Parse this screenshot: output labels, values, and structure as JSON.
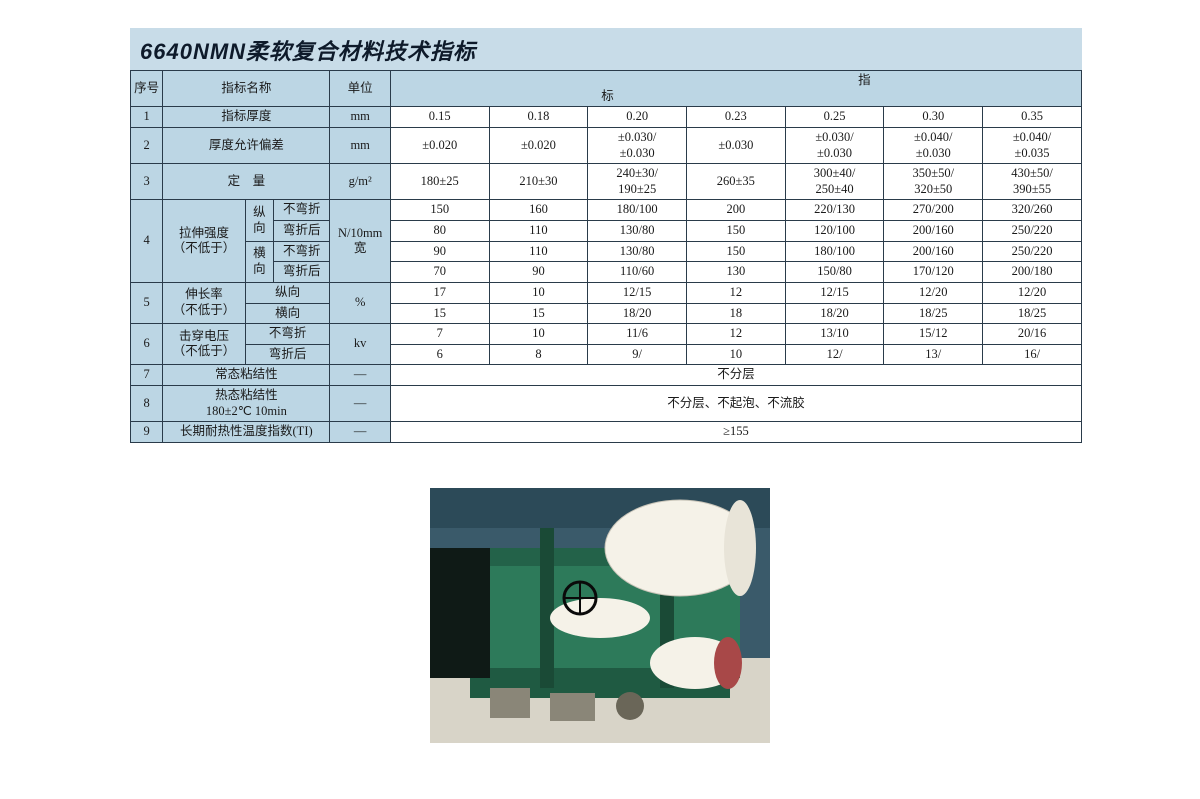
{
  "title": "6640NMN柔软复合材料技术指标",
  "colors": {
    "header_bg": "#bcd6e4",
    "title_bg": "#c8dce8",
    "border": "#2a3b4a",
    "text": "#1a1a1a",
    "page_bg": "#ffffff"
  },
  "header": {
    "seq": "序号",
    "name": "指标名称",
    "unit": "单位",
    "indexLeft": "指",
    "indexRight": "标"
  },
  "rows": {
    "r1": {
      "seq": "1",
      "name": "指标厚度",
      "unit": "mm",
      "v": [
        "0.15",
        "0.18",
        "0.20",
        "0.23",
        "0.25",
        "0.30",
        "0.35"
      ]
    },
    "r2": {
      "seq": "2",
      "name": "厚度允许偏差",
      "unit": "mm",
      "v": [
        "±0.020",
        "±0.020",
        "±0.030/\n±0.030",
        "±0.030",
        "±0.030/\n±0.030",
        "±0.040/\n±0.030",
        "±0.040/\n±0.035"
      ]
    },
    "r3": {
      "seq": "3",
      "name": "定　量",
      "unit": "g/m²",
      "v": [
        "180±25",
        "210±30",
        "240±30/\n190±25",
        "260±35",
        "300±40/\n250±40",
        "350±50/\n320±50",
        "430±50/\n390±55"
      ]
    },
    "r4": {
      "seq": "4",
      "name": "拉伸强度\n（不低于）",
      "unit": "N/10mm\n宽",
      "dir1": "纵\n向",
      "dir2": "横\n向",
      "sub1": "不弯折",
      "sub2": "弯折后",
      "sub3": "不弯折",
      "sub4": "弯折后",
      "line1": [
        "150",
        "160",
        "180/100",
        "200",
        "220/130",
        "270/200",
        "320/260"
      ],
      "line2": [
        "80",
        "110",
        "130/80",
        "150",
        "120/100",
        "200/160",
        "250/220"
      ],
      "line3": [
        "90",
        "110",
        "130/80",
        "150",
        "180/100",
        "200/160",
        "250/220"
      ],
      "line4": [
        "70",
        "90",
        "110/60",
        "130",
        "150/80",
        "170/120",
        "200/180"
      ]
    },
    "r5": {
      "seq": "5",
      "name": "伸长率\n（不低于）",
      "unit": "%",
      "sub1": "纵向",
      "sub2": "横向",
      "line1": [
        "17",
        "10",
        "12/15",
        "12",
        "12/15",
        "12/20",
        "12/20"
      ],
      "line2": [
        "15",
        "15",
        "18/20",
        "18",
        "18/20",
        "18/25",
        "18/25"
      ]
    },
    "r6": {
      "seq": "6",
      "name": "击穿电压\n（不低于）",
      "unit": "kv",
      "sub1": "不弯折",
      "sub2": "弯折后",
      "line1": [
        "7",
        "10",
        "11/6",
        "12",
        "13/10",
        "15/12",
        "20/16"
      ],
      "line2": [
        "6",
        "8",
        "9/",
        "10",
        "12/",
        "13/",
        "16/"
      ]
    },
    "r7": {
      "seq": "7",
      "name": "常态粘结性",
      "unit": "—",
      "val": "不分层"
    },
    "r8": {
      "seq": "8",
      "name": "热态粘结性\n180±2℃ 10min",
      "unit": "—",
      "val": "不分层、不起泡、不流胶"
    },
    "r9": {
      "seq": "9",
      "name": "长期耐热性温度指数(TI)",
      "unit": "—",
      "val": "≥155"
    }
  },
  "photo": {
    "caption": "machinery-photo",
    "machine_color": "#2d7a5a",
    "roll_color": "#f5f2e8",
    "roll_red": "#a84848",
    "floor_color": "#d8d4c8",
    "wall_color": "#3a5a6a",
    "dark": "#1a2a24"
  }
}
